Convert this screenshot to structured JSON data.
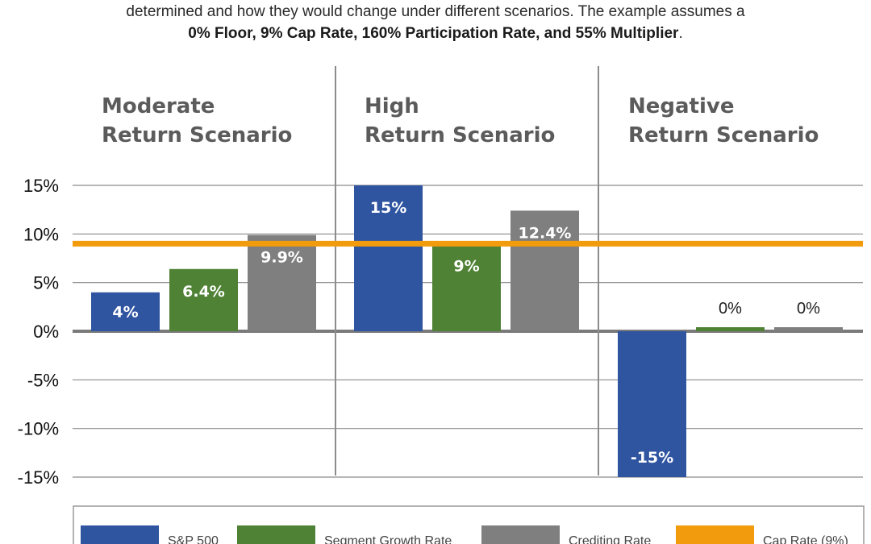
{
  "intro": {
    "line1": "determined and how they would change under different scenarios. The example assumes a",
    "line2_bold": "0% Floor, 9% Cap Rate, 160% Participation Rate, and 55% Multiplier",
    "line2_end": "."
  },
  "chart_data": {
    "type": "bar",
    "categories": [
      "Moderate Return Scenario",
      "High Return Scenario",
      "Negative Return Scenario"
    ],
    "category_title_lines": [
      [
        "Moderate",
        "Return Scenario"
      ],
      [
        "High",
        "Return Scenario"
      ],
      [
        "Negative",
        "Return Scenario"
      ]
    ],
    "series": [
      {
        "name": "S&P 500",
        "values": [
          4,
          15,
          -15
        ],
        "labels": [
          "4%",
          "15%",
          "-15%"
        ],
        "color": "#2f54a0"
      },
      {
        "name": "Segment Growth Rate",
        "values": [
          6.4,
          9,
          0
        ],
        "labels": [
          "6.4%",
          "9%",
          "0%"
        ],
        "color": "#4f8235"
      },
      {
        "name": "Crediting Rate",
        "values": [
          9.9,
          12.4,
          0
        ],
        "labels": [
          "9.9%",
          "12.4%",
          "0%"
        ],
        "color": "#7f7f7f"
      }
    ],
    "reference_line": {
      "name": "Cap Rate (9%)",
      "value": 9,
      "color": "#f29b0c"
    },
    "ylim": [
      -15,
      15
    ],
    "yticks": [
      "15%",
      "10%",
      "5%",
      "0%",
      "-5%",
      "-10%",
      "-15%"
    ],
    "ytick_values": [
      15,
      10,
      5,
      0,
      -5,
      -10,
      -15
    ],
    "grid": true,
    "legend_position": "bottom",
    "xlabel": "",
    "ylabel": ""
  }
}
